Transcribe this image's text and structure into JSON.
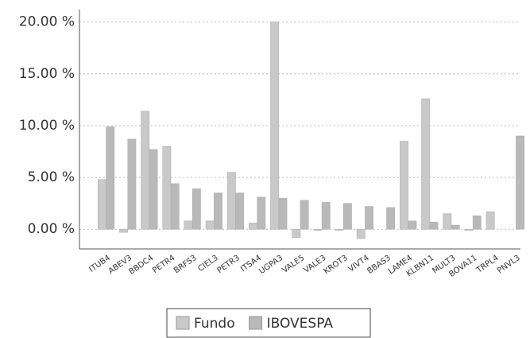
{
  "chart_data": {
    "type": "bar",
    "categories": [
      "ITUB4",
      "ABEV3",
      "BBDC4",
      "PETR4",
      "BRFS3",
      "CIEL3",
      "PETR3",
      "ITSA4",
      "UGPA3",
      "VALE5",
      "VALE3",
      "KROT3",
      "VIVT4",
      "BBAS3",
      "LAME4",
      "KLBN11",
      "MULT3",
      "BOVA11",
      "TRPL4",
      "PNVL3"
    ],
    "series": [
      {
        "name": "Fundo",
        "color": "#c9c9c9",
        "values": [
          4.8,
          -0.3,
          11.4,
          8.0,
          0.8,
          0.8,
          5.5,
          0.6,
          20.0,
          -0.8,
          -0.1,
          -0.1,
          -0.9,
          0,
          8.5,
          12.6,
          1.5,
          -0.1,
          1.7,
          0
        ]
      },
      {
        "name": "IBOVESPA",
        "color": "#b9b9b9",
        "values": [
          9.9,
          8.7,
          7.7,
          4.4,
          3.9,
          3.5,
          3.5,
          3.1,
          3.0,
          2.8,
          2.6,
          2.5,
          2.2,
          2.1,
          0.8,
          0.7,
          0.4,
          1.3,
          0,
          9.0
        ]
      }
    ],
    "ylim": [
      -1.9,
      21.2
    ],
    "yticks": [
      {
        "value": 0,
        "label": "0.00 %"
      },
      {
        "value": 5,
        "label": "5.00 %"
      },
      {
        "value": 10,
        "label": "10.00 %"
      },
      {
        "value": 15,
        "label": "15.00 %"
      },
      {
        "value": 20,
        "label": "20.00 %"
      }
    ],
    "grid": true,
    "legend": "bottom"
  }
}
